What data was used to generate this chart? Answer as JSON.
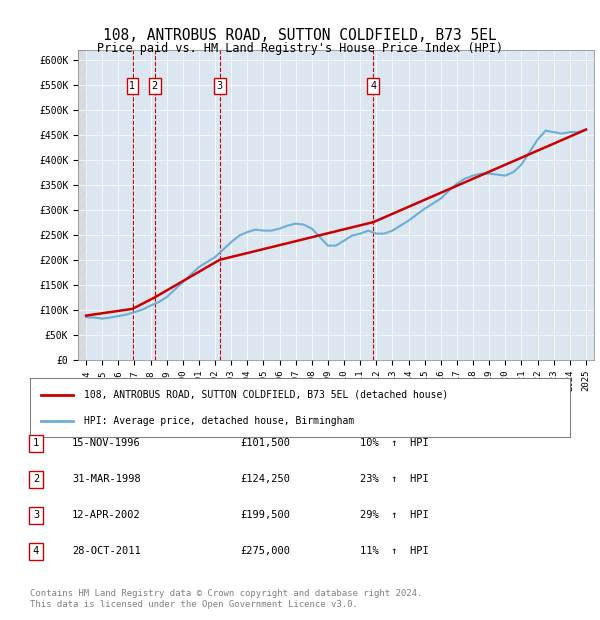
{
  "title": "108, ANTROBUS ROAD, SUTTON COLDFIELD, B73 5EL",
  "subtitle": "Price paid vs. HM Land Registry's House Price Index (HPI)",
  "ylabel_ticks": [
    "£0",
    "£50K",
    "£100K",
    "£150K",
    "£200K",
    "£250K",
    "£300K",
    "£350K",
    "£400K",
    "£450K",
    "£500K",
    "£550K",
    "£600K"
  ],
  "ylim": [
    0,
    620000
  ],
  "ytick_vals": [
    0,
    50000,
    100000,
    150000,
    200000,
    250000,
    300000,
    350000,
    400000,
    450000,
    500000,
    550000,
    600000
  ],
  "background_color": "#dce6f1",
  "plot_bg_color": "#dce6f1",
  "hpi_color": "#6baed6",
  "price_color": "#cc0000",
  "hpi_data": {
    "years": [
      1994,
      1994.5,
      1995,
      1995.5,
      1996,
      1996.5,
      1997,
      1997.5,
      1998,
      1998.5,
      1999,
      1999.5,
      2000,
      2000.5,
      2001,
      2001.5,
      2002,
      2002.5,
      2003,
      2003.5,
      2004,
      2004.5,
      2005,
      2005.5,
      2006,
      2006.5,
      2007,
      2007.5,
      2008,
      2008.5,
      2009,
      2009.5,
      2010,
      2010.5,
      2011,
      2011.5,
      2012,
      2012.5,
      2013,
      2013.5,
      2014,
      2014.5,
      2015,
      2015.5,
      2016,
      2016.5,
      2017,
      2017.5,
      2018,
      2018.5,
      2019,
      2019.5,
      2020,
      2020.5,
      2021,
      2021.5,
      2022,
      2022.5,
      2023,
      2023.5,
      2024,
      2024.5,
      2025
    ],
    "values": [
      85000,
      84000,
      82000,
      84000,
      87000,
      90000,
      95000,
      100000,
      108000,
      115000,
      125000,
      140000,
      155000,
      170000,
      185000,
      195000,
      205000,
      220000,
      235000,
      248000,
      255000,
      260000,
      258000,
      258000,
      262000,
      268000,
      272000,
      270000,
      262000,
      245000,
      228000,
      228000,
      238000,
      248000,
      252000,
      258000,
      252000,
      252000,
      258000,
      268000,
      278000,
      290000,
      302000,
      312000,
      322000,
      338000,
      352000,
      362000,
      368000,
      372000,
      372000,
      370000,
      368000,
      375000,
      390000,
      415000,
      440000,
      458000,
      455000,
      452000,
      455000,
      455000,
      460000
    ]
  },
  "price_data": {
    "years": [
      1994,
      1996.88,
      1998.25,
      2002.28,
      2011.82,
      2025
    ],
    "values": [
      88000,
      101500,
      124250,
      199500,
      275000,
      460000
    ]
  },
  "transactions": [
    {
      "num": 1,
      "date": "15-NOV-1996",
      "price": 101500,
      "pct": "10%",
      "year": 1996.88
    },
    {
      "num": 2,
      "date": "31-MAR-1998",
      "price": 124250,
      "pct": "23%",
      "year": 1998.25
    },
    {
      "num": 3,
      "date": "12-APR-2002",
      "price": 199500,
      "pct": "29%",
      "year": 2002.28
    },
    {
      "num": 4,
      "date": "28-OCT-2011",
      "price": 275000,
      "pct": "11%",
      "year": 2011.82
    }
  ],
  "legend_line1": "108, ANTROBUS ROAD, SUTTON COLDFIELD, B73 5EL (detached house)",
  "legend_line2": "HPI: Average price, detached house, Birmingham",
  "footer": "Contains HM Land Registry data © Crown copyright and database right 2024.\nThis data is licensed under the Open Government Licence v3.0.",
  "dashed_vlines_years": [
    1996.88,
    1998.25,
    2002.28,
    2011.82
  ],
  "xlim": [
    1993.5,
    2025.5
  ],
  "xtick_years": [
    1994,
    1995,
    1996,
    1997,
    1998,
    1999,
    2000,
    2001,
    2002,
    2003,
    2004,
    2005,
    2006,
    2007,
    2008,
    2009,
    2010,
    2011,
    2012,
    2013,
    2014,
    2015,
    2016,
    2017,
    2018,
    2019,
    2020,
    2021,
    2022,
    2023,
    2024,
    2025
  ]
}
